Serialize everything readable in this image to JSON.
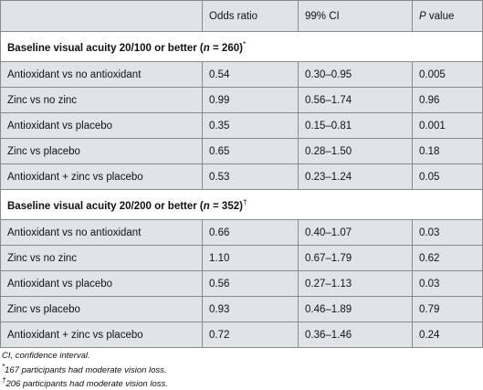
{
  "header": {
    "col_1": "",
    "col_2": "Odds ratio",
    "col_3": "99% CI",
    "col_4_italic": "P",
    "col_4_rest": " value"
  },
  "sections": [
    {
      "title_pre": "Baseline visual acuity 20/100 or better (",
      "title_n": "n",
      "title_post": " = 260)",
      "title_mark": "*",
      "rows": [
        {
          "comparison": "Antioxidant vs no antioxidant",
          "odds_ratio": "0.54",
          "ci": "0.30–0.95",
          "p": "0.005"
        },
        {
          "comparison": "Zinc vs no zinc",
          "odds_ratio": "0.99",
          "ci": "0.56–1.74",
          "p": "0.96"
        },
        {
          "comparison": "Antioxidant vs placebo",
          "odds_ratio": "0.35",
          "ci": "0.15–0.81",
          "p": "0.001"
        },
        {
          "comparison": "Zinc vs placebo",
          "odds_ratio": "0.65",
          "ci": "0.28–1.50",
          "p": "0.18"
        },
        {
          "comparison": "Antioxidant + zinc vs placebo",
          "odds_ratio": "0.53",
          "ci": "0.23–1.24",
          "p": "0.05"
        }
      ]
    },
    {
      "title_pre": "Baseline visual acuity 20/200 or better (",
      "title_n": "n",
      "title_post": " = 352)",
      "title_mark": "†",
      "rows": [
        {
          "comparison": "Antioxidant vs no antioxidant",
          "odds_ratio": "0.66",
          "ci": "0.40–1.07",
          "p": "0.03"
        },
        {
          "comparison": "Zinc vs no zinc",
          "odds_ratio": "1.10",
          "ci": "0.67–1.79",
          "p": "0.62"
        },
        {
          "comparison": "Antioxidant vs placebo",
          "odds_ratio": "0.56",
          "ci": "0.27–1.13",
          "p": "0.03"
        },
        {
          "comparison": "Zinc vs placebo",
          "odds_ratio": "0.93",
          "ci": "0.46–1.89",
          "p": "0.79"
        },
        {
          "comparison": "Antioxidant + zinc vs placebo",
          "odds_ratio": "0.72",
          "ci": "0.36–1.46",
          "p": "0.24"
        }
      ]
    }
  ],
  "footnotes": {
    "ci_abbrev": "CI, confidence interval.",
    "note1_mark": "*",
    "note1_text": "167 participants had moderate vision loss.",
    "note2_mark": "†",
    "note2_text": "206 participants had moderate vision loss."
  }
}
